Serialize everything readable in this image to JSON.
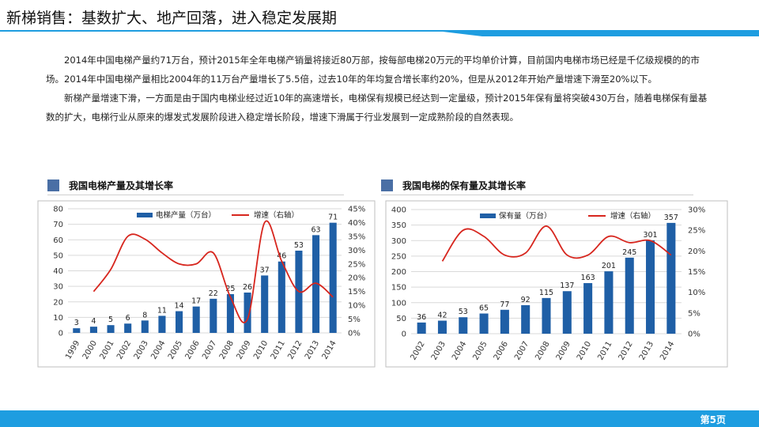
{
  "title": "新梯销售：基数扩大、地产回落，进入稳定发展期",
  "paragraphs": [
    "2014年中国电梯产量约71万台，预计2015年全年电梯产销量将接近80万部，按每部电梯20万元的平均单价计算，目前国内电梯市场已经是千亿级规模的的市场。2014年中国电梯产量相比2004年的11万台产量增长了5.5倍，过去10年的年均复合增长率约20%，但是从2012年开始产量增速下滑至20%以下。",
    "新梯产量增速下滑，一方面是由于国内电梯业经过近10年的高速增长，电梯保有规模已经达到一定量级，预计2015年保有量将突破430万台，随着电梯保有量基数的扩大，电梯行业从原来的爆发式发展阶段进入稳定增长阶段，增速下滑属于行业发展到一定成熟阶段的自然表现。"
  ],
  "colors": {
    "bar": "#1f5fa6",
    "line": "#d7261e",
    "footer": "#1e9de0",
    "accent": "#4a6fa5"
  },
  "footer": {
    "page": "第5页"
  },
  "chart_data": [
    {
      "type": "bar",
      "title": "我国电梯产量及其增长率",
      "categories": [
        "1999",
        "2000",
        "2001",
        "2002",
        "2003",
        "2004",
        "2005",
        "2006",
        "2007",
        "2008",
        "2009",
        "2010",
        "2011",
        "2012",
        "2013",
        "2014"
      ],
      "series": [
        {
          "name": "电梯产量（万台）",
          "kind": "bar",
          "axis": "left",
          "values": [
            3,
            4,
            5,
            6,
            8,
            11,
            14,
            17,
            22,
            25,
            26,
            37,
            46,
            53,
            63,
            71
          ],
          "labels": [
            "3",
            "4",
            "5",
            "6",
            "8",
            "11",
            "14",
            "17",
            "22",
            "25",
            "26",
            "37",
            "46",
            "53",
            "63",
            "71"
          ]
        },
        {
          "name": "增速（右轴）",
          "kind": "line",
          "axis": "right",
          "values": [
            null,
            0.15,
            0.23,
            0.35,
            0.34,
            0.29,
            0.25,
            0.25,
            0.29,
            0.13,
            0.05,
            0.4,
            0.26,
            0.15,
            0.18,
            0.13
          ]
        }
      ],
      "ylim": [
        0,
        80
      ],
      "yticks": [
        "0",
        "10",
        "20",
        "30",
        "40",
        "50",
        "60",
        "70",
        "80"
      ],
      "y2lim": [
        0,
        0.45
      ],
      "y2ticks": [
        "0%",
        "5%",
        "10%",
        "15%",
        "20%",
        "25%",
        "30%",
        "35%",
        "40%",
        "45%"
      ],
      "grid": true,
      "legend": "top"
    },
    {
      "type": "bar",
      "title": "我国电梯的保有量及其增长率",
      "categories": [
        "2002",
        "2003",
        "2004",
        "2005",
        "2006",
        "2007",
        "2008",
        "2009",
        "2010",
        "2011",
        "2012",
        "2013",
        "2014"
      ],
      "series": [
        {
          "name": "保有量（万台）",
          "kind": "bar",
          "axis": "left",
          "values": [
            36,
            42,
            53,
            65,
            77,
            92,
            115,
            137,
            163,
            201,
            245,
            301,
            357
          ],
          "labels": [
            "36",
            "42",
            "53",
            "65",
            "77",
            "92",
            "115",
            "137",
            "163",
            "201",
            "245",
            "301",
            "357"
          ]
        },
        {
          "name": "增速（右轴）",
          "kind": "line",
          "axis": "right",
          "values": [
            null,
            0.175,
            0.25,
            0.235,
            0.19,
            0.195,
            0.26,
            0.19,
            0.19,
            0.235,
            0.22,
            0.225,
            0.19
          ]
        }
      ],
      "ylim": [
        0,
        400
      ],
      "yticks": [
        "0",
        "50",
        "100",
        "150",
        "200",
        "250",
        "300",
        "350",
        "400"
      ],
      "y2lim": [
        0,
        0.3
      ],
      "y2ticks": [
        "0%",
        "5%",
        "10%",
        "15%",
        "20%",
        "25%",
        "30%"
      ],
      "grid": true,
      "legend": "top"
    }
  ]
}
